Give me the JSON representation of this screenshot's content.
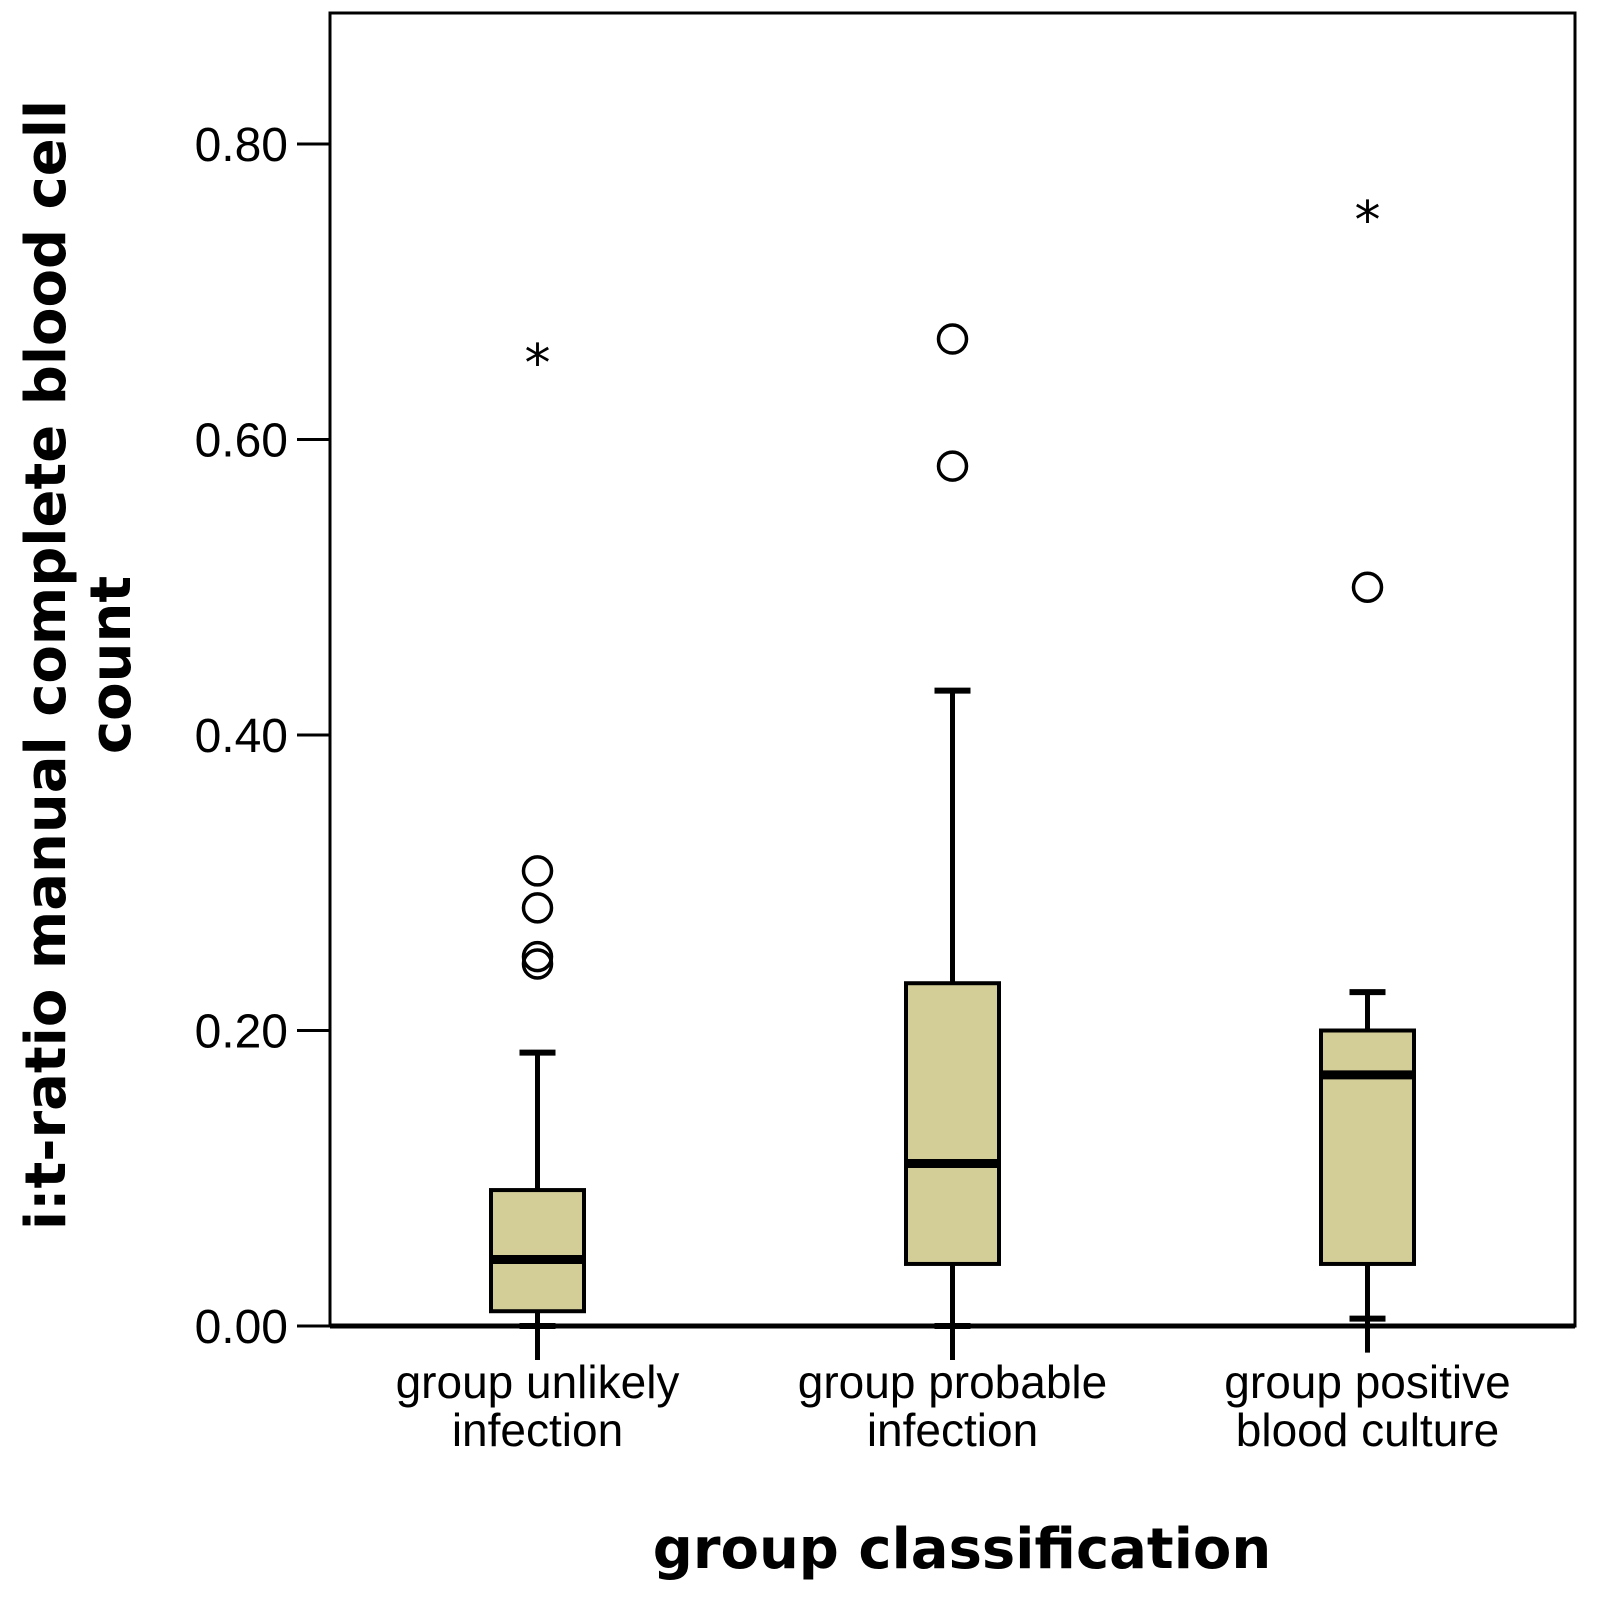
{
  "chart_data": {
    "type": "boxplot",
    "title": "",
    "xlabel": "group classification",
    "ylabel_lines": [
      "i:t-ratio manual complete blood cell",
      "count"
    ],
    "ylim": [
      0,
      0.89
    ],
    "yticks": [
      0.0,
      0.2,
      0.4,
      0.6,
      0.8
    ],
    "ytick_labels": [
      "0.00",
      "0.20",
      "0.40",
      "0.60",
      "0.80"
    ],
    "box_color": "#d3cd98",
    "groups": [
      {
        "label_lines": [
          "group unlikely",
          "infection"
        ],
        "whisker_low": 0.0,
        "q1": 0.01,
        "median": 0.045,
        "q3": 0.092,
        "whisker_high": 0.185,
        "outliers": [
          0.245,
          0.25,
          0.283,
          0.308
        ],
        "extremes": [
          0.653
        ]
      },
      {
        "label_lines": [
          "group probable",
          "infection"
        ],
        "whisker_low": 0.0,
        "q1": 0.042,
        "median": 0.11,
        "q3": 0.232,
        "whisker_high": 0.43,
        "outliers": [
          0.582,
          0.668
        ],
        "extremes": []
      },
      {
        "label_lines": [
          "group positive",
          "blood culture"
        ],
        "whisker_low": 0.005,
        "q1": 0.042,
        "median": 0.17,
        "q3": 0.2,
        "whisker_high": 0.226,
        "outliers": [
          0.5
        ],
        "extremes": [
          0.75
        ]
      }
    ]
  }
}
